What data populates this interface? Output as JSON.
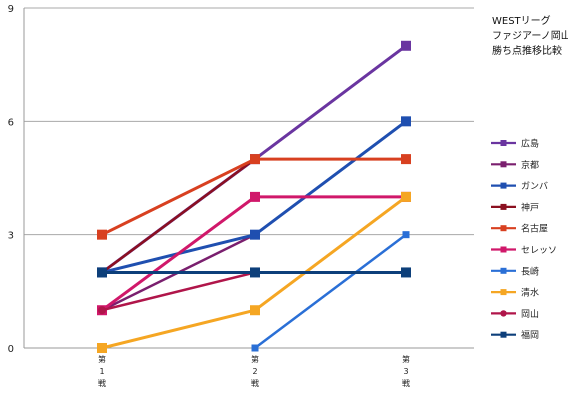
{
  "chart_data": {
    "type": "line",
    "title_lines": [
      "WESTリーグ",
      "ファジアーノ岡山",
      "勝ち点推移比較"
    ],
    "categories": [
      [
        "第",
        "1",
        "戦"
      ],
      [
        "第",
        "2",
        "戦"
      ],
      [
        "第",
        "3",
        "戦"
      ]
    ],
    "ylim": [
      0,
      9
    ],
    "yticks": [
      0,
      3,
      6,
      9
    ],
    "grid": true,
    "legend_position": "right",
    "series": [
      {
        "name": "広島",
        "color": "#6a35a0",
        "marker": "square",
        "size": "large",
        "values": [
          2,
          5,
          8
        ]
      },
      {
        "name": "京都",
        "color": "#7a1f6e",
        "marker": "square",
        "size": "small",
        "values": [
          1,
          3,
          null
        ]
      },
      {
        "name": "ガンバ",
        "color": "#1f4fb0",
        "marker": "square",
        "size": "large",
        "values": [
          2,
          3,
          6
        ]
      },
      {
        "name": "神戸",
        "color": "#8b1020",
        "marker": "square",
        "size": "small",
        "values": [
          2,
          5,
          null
        ]
      },
      {
        "name": "名古屋",
        "color": "#d84020",
        "marker": "square",
        "size": "large",
        "values": [
          3,
          5,
          5
        ]
      },
      {
        "name": "セレッソ",
        "color": "#d0186a",
        "marker": "square",
        "size": "large",
        "values": [
          1,
          4,
          4
        ]
      },
      {
        "name": "長崎",
        "color": "#2a6fd6",
        "marker": "square",
        "size": "small",
        "values": [
          null,
          0,
          3
        ]
      },
      {
        "name": "清水",
        "color": "#f5a623",
        "marker": "square",
        "size": "large",
        "values": [
          0,
          1,
          4
        ]
      },
      {
        "name": "岡山",
        "color": "#b0154a",
        "marker": "circle",
        "size": "small",
        "values": [
          1,
          2,
          null
        ]
      },
      {
        "name": "福岡",
        "color": "#0d3f7a",
        "marker": "square",
        "size": "large",
        "values": [
          2,
          2,
          2
        ]
      }
    ]
  }
}
